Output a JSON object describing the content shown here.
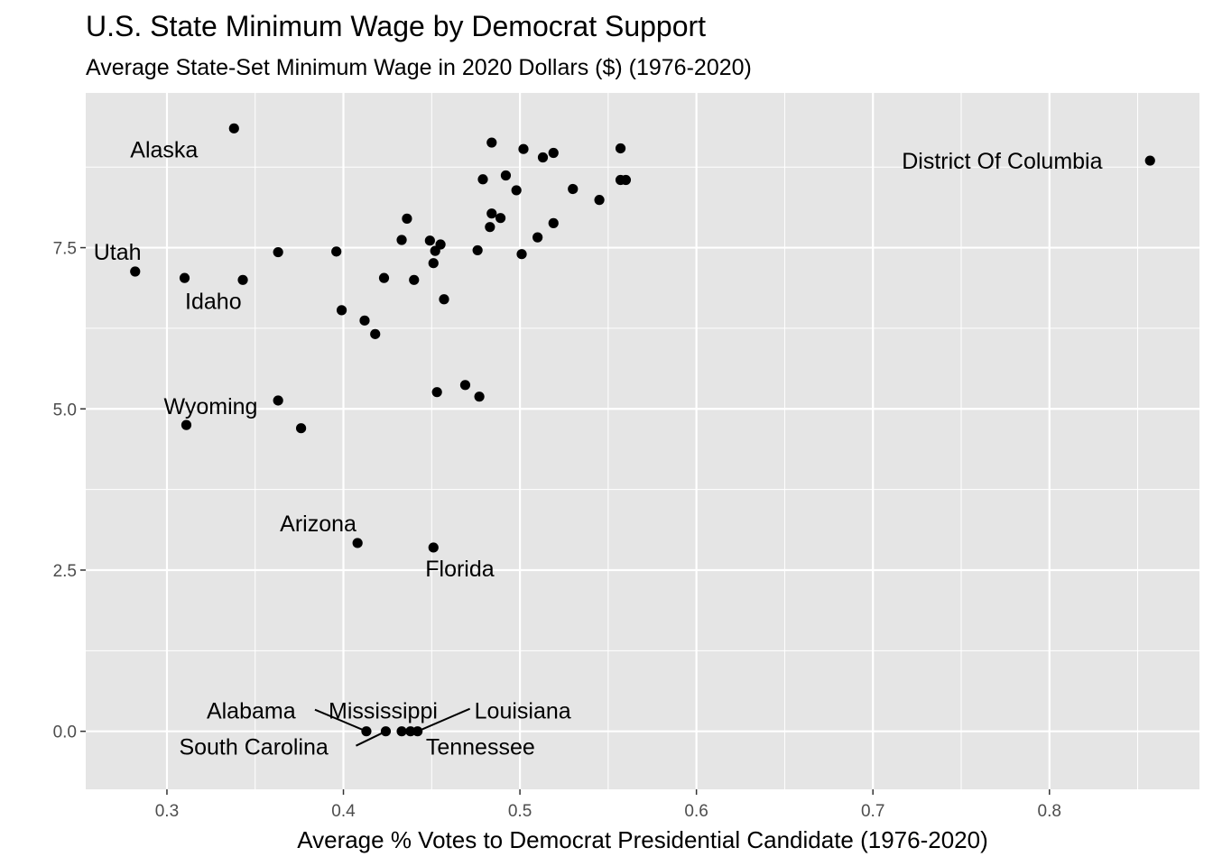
{
  "chart_data": {
    "type": "scatter",
    "title": "U.S. State Minimum Wage by Democrat Support",
    "subtitle": "Average State-Set Minimum Wage in 2020 Dollars ($) (1976-2020)",
    "xlabel": "Average % Votes to Democrat Presidential Candidate (1976-2020)",
    "ylabel": "",
    "xlim": [
      0.254,
      0.885
    ],
    "ylim": [
      -0.9,
      9.9
    ],
    "x_ticks": [
      0.3,
      0.4,
      0.5,
      0.6,
      0.7,
      0.8
    ],
    "x_tick_labels": [
      "0.3",
      "0.4",
      "0.5",
      "0.6",
      "0.7",
      "0.8"
    ],
    "y_ticks": [
      0.0,
      2.5,
      5.0,
      7.5
    ],
    "y_tick_labels": [
      "0.0",
      "2.5",
      "5.0",
      "7.5"
    ],
    "grid": true,
    "legend": "none",
    "colors": {
      "panel": "#e5e5e5",
      "grid": "#ffffff",
      "point": "#000000"
    },
    "points": [
      {
        "x": 0.338,
        "y": 9.35,
        "label": "Alaska"
      },
      {
        "x": 0.282,
        "y": 7.13,
        "label": "Utah"
      },
      {
        "x": 0.343,
        "y": 7.0,
        "label": "Idaho"
      },
      {
        "x": 0.311,
        "y": 4.75,
        "label": "Wyoming"
      },
      {
        "x": 0.408,
        "y": 2.92,
        "label": "Arizona"
      },
      {
        "x": 0.451,
        "y": 2.85,
        "label": "Florida"
      },
      {
        "x": 0.857,
        "y": 8.85,
        "label": "District Of Columbia"
      },
      {
        "x": 0.413,
        "y": 0.0,
        "label": "Alabama"
      },
      {
        "x": 0.424,
        "y": 0.0,
        "label": "South Carolina"
      },
      {
        "x": 0.433,
        "y": 0.0,
        "label": "Mississippi"
      },
      {
        "x": 0.438,
        "y": 0.0,
        "label": "Tennessee"
      },
      {
        "x": 0.442,
        "y": 0.0,
        "label": "Louisiana"
      },
      {
        "x": 0.31,
        "y": 7.03
      },
      {
        "x": 0.363,
        "y": 7.43
      },
      {
        "x": 0.396,
        "y": 7.44
      },
      {
        "x": 0.399,
        "y": 6.53
      },
      {
        "x": 0.412,
        "y": 6.37
      },
      {
        "x": 0.418,
        "y": 6.16
      },
      {
        "x": 0.423,
        "y": 7.03
      },
      {
        "x": 0.433,
        "y": 7.62
      },
      {
        "x": 0.436,
        "y": 7.95
      },
      {
        "x": 0.44,
        "y": 7.0
      },
      {
        "x": 0.449,
        "y": 7.61
      },
      {
        "x": 0.451,
        "y": 7.26
      },
      {
        "x": 0.452,
        "y": 7.45
      },
      {
        "x": 0.455,
        "y": 7.55
      },
      {
        "x": 0.457,
        "y": 6.7
      },
      {
        "x": 0.476,
        "y": 7.46
      },
      {
        "x": 0.479,
        "y": 8.56
      },
      {
        "x": 0.483,
        "y": 7.82
      },
      {
        "x": 0.484,
        "y": 8.03
      },
      {
        "x": 0.484,
        "y": 9.13
      },
      {
        "x": 0.489,
        "y": 7.96
      },
      {
        "x": 0.492,
        "y": 8.62
      },
      {
        "x": 0.498,
        "y": 8.39
      },
      {
        "x": 0.501,
        "y": 7.4
      },
      {
        "x": 0.502,
        "y": 9.03
      },
      {
        "x": 0.51,
        "y": 7.66
      },
      {
        "x": 0.513,
        "y": 8.9
      },
      {
        "x": 0.519,
        "y": 8.97
      },
      {
        "x": 0.519,
        "y": 7.88
      },
      {
        "x": 0.53,
        "y": 8.41
      },
      {
        "x": 0.545,
        "y": 8.24
      },
      {
        "x": 0.557,
        "y": 9.04
      },
      {
        "x": 0.557,
        "y": 8.55
      },
      {
        "x": 0.56,
        "y": 8.55
      },
      {
        "x": 0.363,
        "y": 5.13
      },
      {
        "x": 0.376,
        "y": 4.7
      },
      {
        "x": 0.453,
        "y": 5.26
      },
      {
        "x": 0.469,
        "y": 5.37
      },
      {
        "x": 0.477,
        "y": 5.19
      }
    ]
  }
}
